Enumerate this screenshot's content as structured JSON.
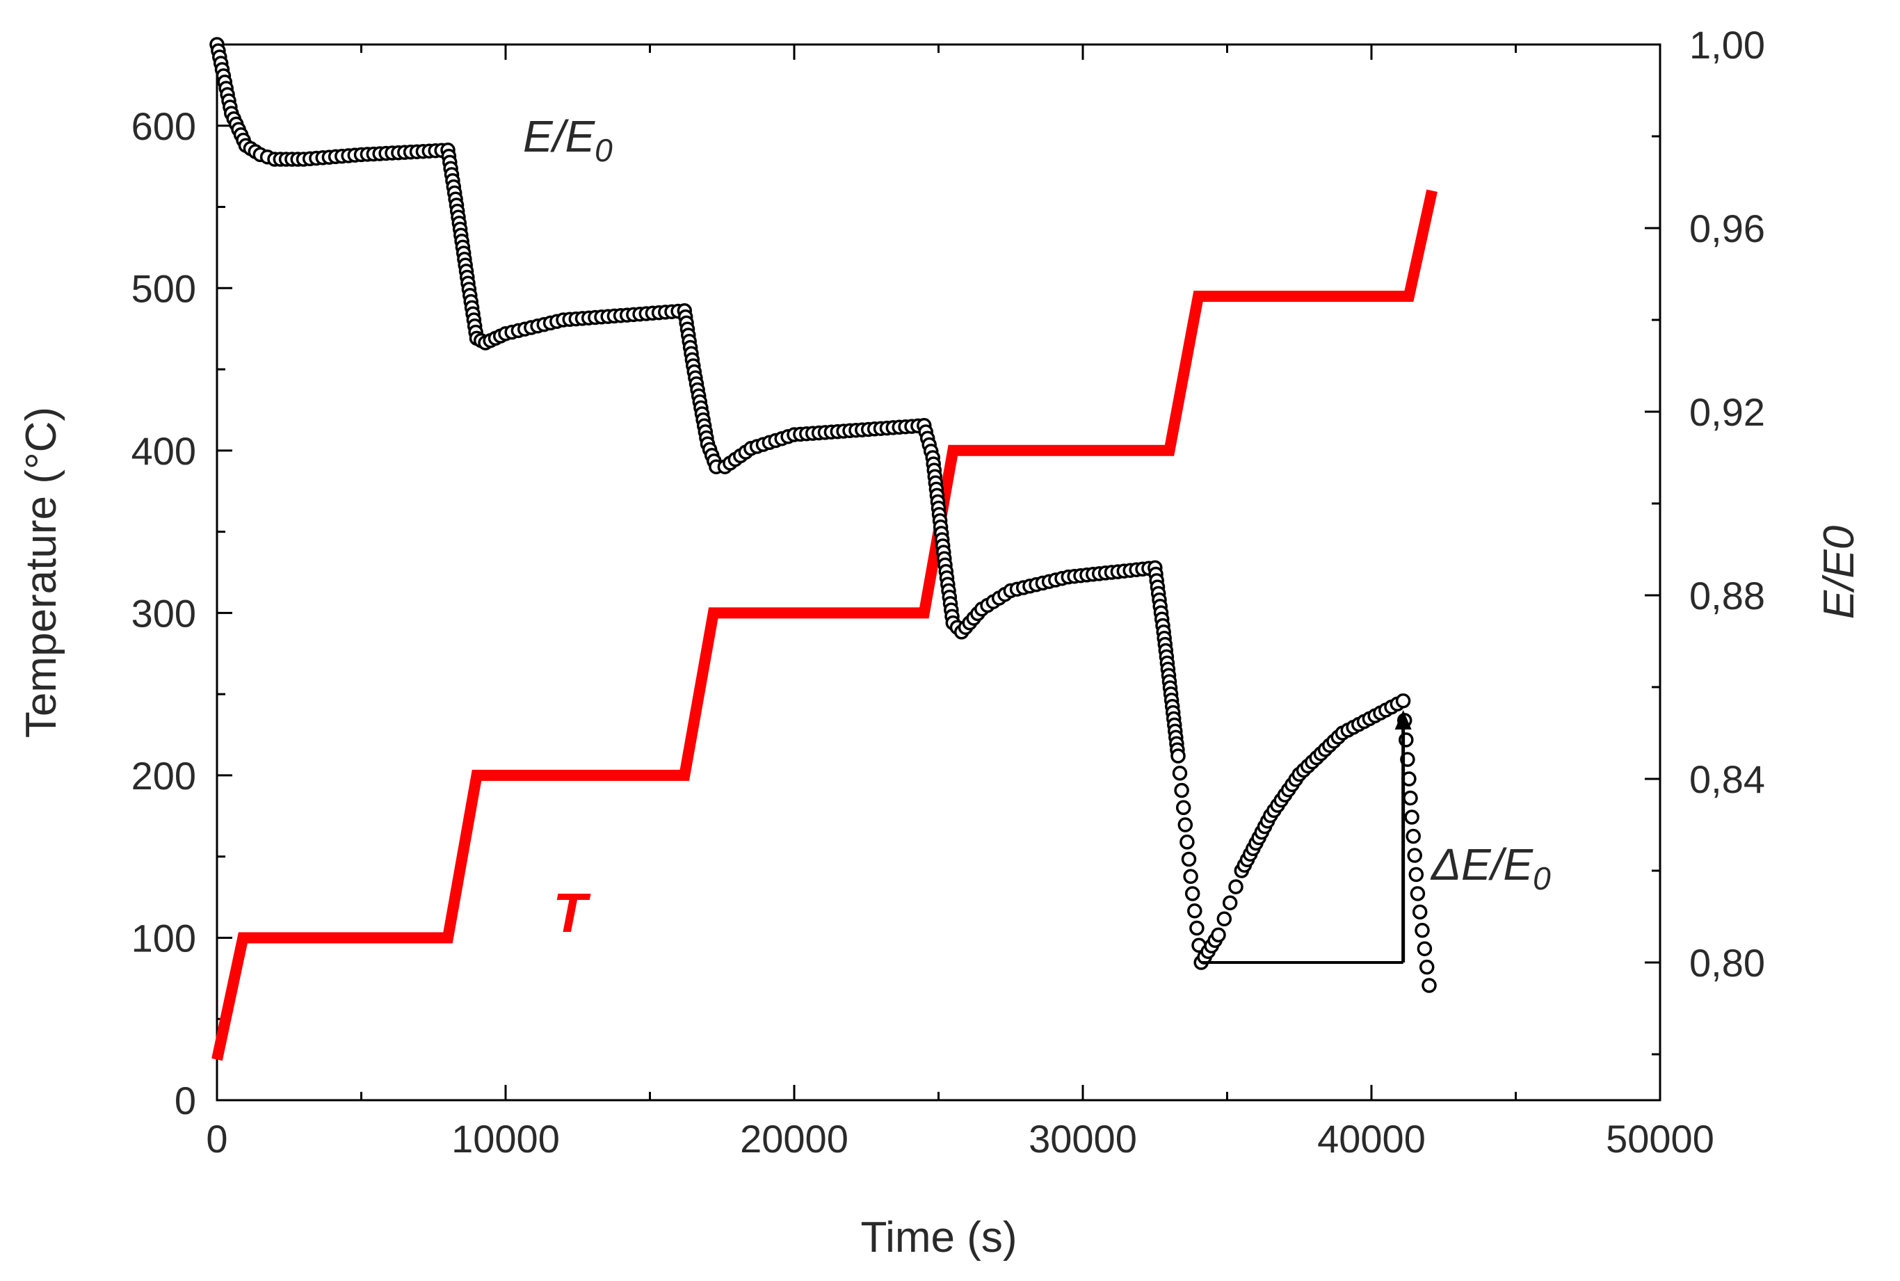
{
  "chart_data": {
    "type": "line",
    "title": "",
    "xlabel": "Time (s)",
    "ylabel_left": "Temperature (°C)",
    "ylabel_right": "E/E0",
    "xlim": [
      0,
      50000
    ],
    "ylim_left": [
      0,
      650
    ],
    "ylim_right": [
      0.77,
      1.0
    ],
    "x_ticks": [
      "0",
      "10000",
      "20000",
      "30000",
      "40000",
      "50000"
    ],
    "y_left_ticks": [
      "0",
      "100",
      "200",
      "300",
      "400",
      "500",
      "600"
    ],
    "y_right_ticks": [
      "0,80",
      "0,84",
      "0,88",
      "0,92",
      "0,96",
      "1,00"
    ],
    "annotations": {
      "ee0_label": "E/E",
      "ee0_sub": "0",
      "t_label": "T",
      "delta_label": "ΔE/E",
      "delta_sub": "0"
    },
    "series": [
      {
        "name": "T",
        "axis": "left",
        "color": "#ff0000",
        "style": "thick-line",
        "x": [
          0,
          900,
          8000,
          9000,
          16200,
          17200,
          24500,
          25500,
          33000,
          34000,
          41300,
          42100
        ],
        "y": [
          25,
          100,
          100,
          200,
          200,
          300,
          300,
          400,
          400,
          495,
          495,
          560
        ]
      },
      {
        "name": "E/E0",
        "axis": "right",
        "color": "#000000",
        "style": "open-circles",
        "x": [
          0,
          500,
          1000,
          1500,
          2000,
          3000,
          5000,
          8000,
          8300,
          8700,
          9000,
          9300,
          10000,
          12000,
          16200,
          16500,
          17000,
          17300,
          17600,
          18500,
          20000,
          24500,
          24800,
          25200,
          25500,
          25800,
          26500,
          27500,
          29500,
          32500,
          32800,
          33300,
          33800,
          34100,
          34700,
          35500,
          36500,
          37500,
          39000,
          40500,
          41100,
          41300,
          41600,
          42000
        ],
        "y": [
          1.0,
          0.985,
          0.978,
          0.976,
          0.975,
          0.975,
          0.976,
          0.977,
          0.965,
          0.948,
          0.936,
          0.935,
          0.937,
          0.94,
          0.942,
          0.93,
          0.913,
          0.908,
          0.908,
          0.912,
          0.915,
          0.917,
          0.91,
          0.888,
          0.874,
          0.872,
          0.877,
          0.881,
          0.884,
          0.886,
          0.872,
          0.845,
          0.815,
          0.8,
          0.806,
          0.82,
          0.832,
          0.841,
          0.85,
          0.855,
          0.857,
          0.84,
          0.815,
          0.795
        ]
      }
    ]
  }
}
